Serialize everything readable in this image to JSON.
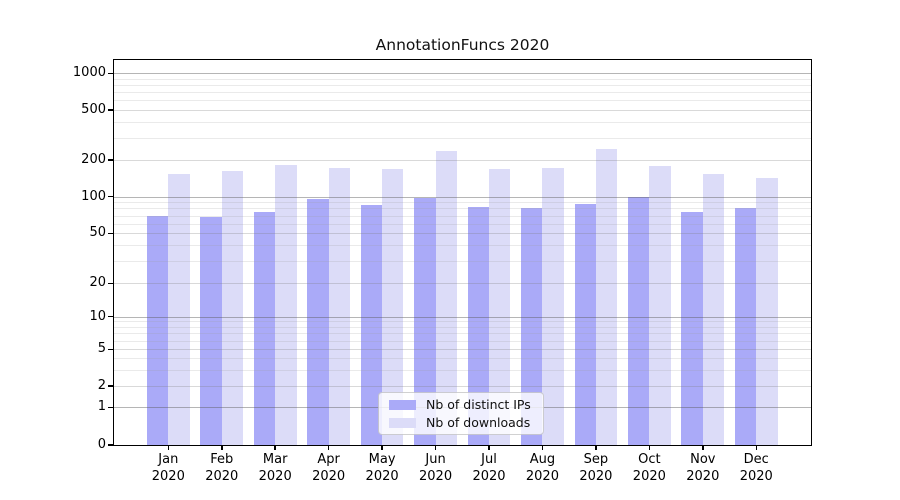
{
  "chart_data": {
    "type": "bar",
    "title": "AnnotationFuncs 2020",
    "categories": [
      "Jan",
      "Feb",
      "Mar",
      "Apr",
      "May",
      "Jun",
      "Jul",
      "Aug",
      "Sep",
      "Oct",
      "Nov",
      "Dec"
    ],
    "category_year": "2020",
    "series": [
      {
        "name": "Nb of distinct IPs",
        "color": "#aaaaf8",
        "values": [
          70,
          68,
          75,
          95,
          85,
          98,
          83,
          80,
          87,
          100,
          75,
          80
        ]
      },
      {
        "name": "Nb of downloads",
        "color": "#dcdcf8",
        "values": [
          154,
          162,
          182,
          172,
          168,
          237,
          168,
          171,
          245,
          180,
          154,
          143
        ]
      }
    ],
    "xlabel": "",
    "ylabel": "",
    "yscale": "symlog",
    "ylim": [
      0,
      1300
    ],
    "yticks": [
      0,
      1,
      2,
      5,
      10,
      20,
      50,
      100,
      200,
      500,
      1000
    ],
    "grid": true,
    "legend_position": "lower center"
  }
}
